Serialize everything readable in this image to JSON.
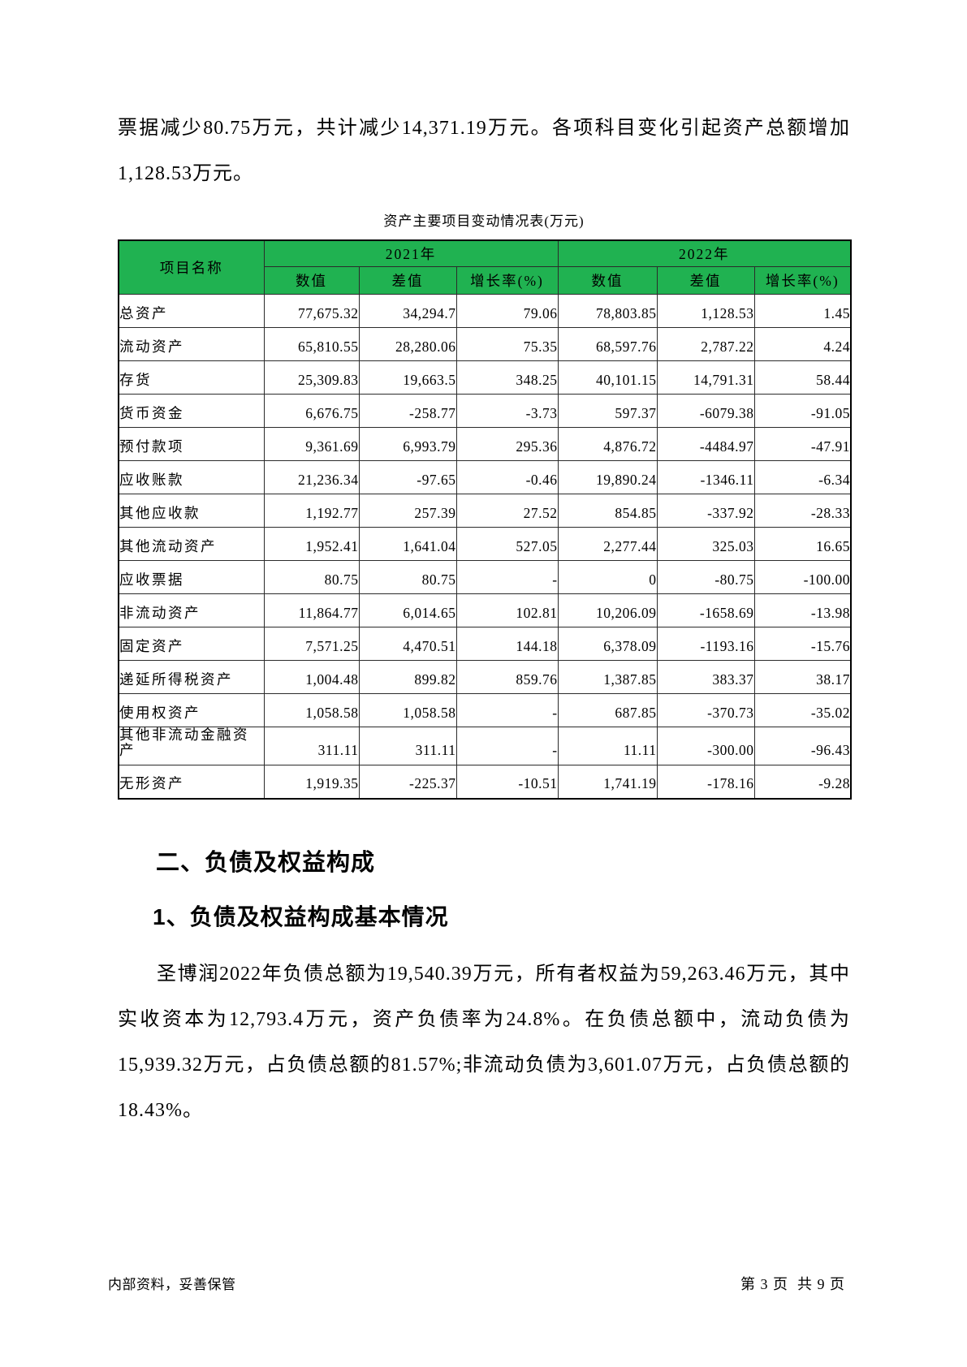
{
  "document": {
    "intro_paragraph": "票据减少80.75万元，共计减少14,371.19万元。各项科目变化引起资产总额增加1,128.53万元。",
    "table": {
      "title": "资产主要项目变动情况表(万元)",
      "header": {
        "item_col": "项目名称",
        "year_groups": [
          "2021年",
          "2022年"
        ],
        "sub_cols": [
          "数值",
          "差值",
          "增长率(%)"
        ]
      },
      "rows": [
        [
          "总资产",
          "77,675.32",
          "34,294.7",
          "79.06",
          "78,803.85",
          "1,128.53",
          "1.45"
        ],
        [
          "流动资产",
          "65,810.55",
          "28,280.06",
          "75.35",
          "68,597.76",
          "2,787.22",
          "4.24"
        ],
        [
          "存货",
          "25,309.83",
          "19,663.5",
          "348.25",
          "40,101.15",
          "14,791.31",
          "58.44"
        ],
        [
          "货币资金",
          "6,676.75",
          "-258.77",
          "-3.73",
          "597.37",
          "-6079.38",
          "-91.05"
        ],
        [
          "预付款项",
          "9,361.69",
          "6,993.79",
          "295.36",
          "4,876.72",
          "-4484.97",
          "-47.91"
        ],
        [
          "应收账款",
          "21,236.34",
          "-97.65",
          "-0.46",
          "19,890.24",
          "-1346.11",
          "-6.34"
        ],
        [
          "其他应收款",
          "1,192.77",
          "257.39",
          "27.52",
          "854.85",
          "-337.92",
          "-28.33"
        ],
        [
          "其他流动资产",
          "1,952.41",
          "1,641.04",
          "527.05",
          "2,277.44",
          "325.03",
          "16.65"
        ],
        [
          "应收票据",
          "80.75",
          "80.75",
          "-",
          "0",
          "-80.75",
          "-100.00"
        ],
        [
          "非流动资产",
          "11,864.77",
          "6,014.65",
          "102.81",
          "10,206.09",
          "-1658.69",
          "-13.98"
        ],
        [
          "固定资产",
          "7,571.25",
          "4,470.51",
          "144.18",
          "6,378.09",
          "-1193.16",
          "-15.76"
        ],
        [
          "递延所得税资产",
          "1,004.48",
          "899.82",
          "859.76",
          "1,387.85",
          "383.37",
          "38.17"
        ],
        [
          "使用权资产",
          "1,058.58",
          "1,058.58",
          "-",
          "687.85",
          "-370.73",
          "-35.02"
        ],
        [
          "其他非流动金融资产",
          "311.11",
          "311.11",
          "-",
          "11.11",
          "-300.00",
          "-96.43"
        ],
        [
          "无形资产",
          "1,919.35",
          "-225.37",
          "-10.51",
          "1,741.19",
          "-178.16",
          "-9.28"
        ]
      ]
    },
    "section_heading": "二、负债及权益构成",
    "subsection_heading": "1、负债及权益构成基本情况",
    "body_paragraph": "圣博润2022年负债总额为19,540.39万元，所有者权益为59,263.46万元，其中实收资本为12,793.4万元，资产负债率为24.8%。在负债总额中，流动负债为15,939.32万元，占负债总额的81.57%;非流动负债为3,601.07万元，占负债总额的18.43%。",
    "footer": {
      "left": "内部资料，妥善保管",
      "right": "第 3 页  共 9 页"
    }
  }
}
